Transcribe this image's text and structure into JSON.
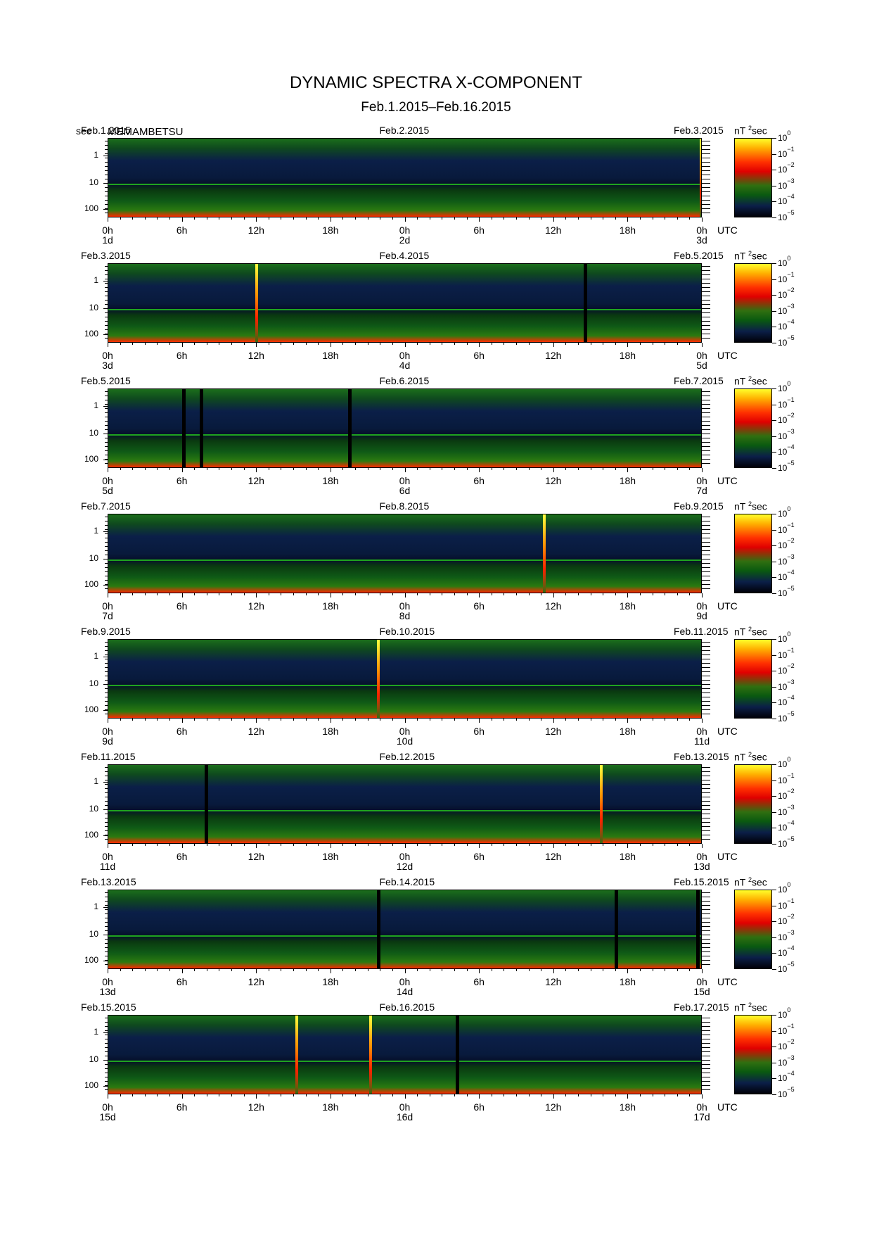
{
  "title": "DYNAMIC SPECTRA X-COMPONENT",
  "subtitle": "Feb.1.2015–Feb.16.2015",
  "station": "MEMAMBETSU",
  "y_unit": "sec",
  "colorbar_unit": "nT",
  "colorbar_unit_sup": "2",
  "colorbar_unit_tail": "sec",
  "colorbar_base": "10",
  "colorbar_exponents": [
    "0",
    "−1",
    "−2",
    "−3",
    "−4",
    "−5"
  ],
  "y_ticks": [
    "1",
    "10",
    "100"
  ],
  "x_ticks": [
    "0h",
    "6h",
    "12h",
    "18h",
    "0h",
    "6h",
    "12h",
    "18h",
    "0h"
  ],
  "utc_label": "UTC",
  "chart_data": [
    {
      "type": "heatmap",
      "start_date": "Feb.1.2015",
      "mid_date": "Feb.2.2015",
      "end_date": "Feb.3.2015",
      "day_labels": [
        "1d",
        "2d",
        "3d"
      ],
      "ylabel": "sec",
      "y_ticks": [
        "1",
        "10",
        "100"
      ],
      "x_ticks": [
        "0h",
        "6h",
        "12h",
        "18h",
        "0h",
        "6h",
        "12h",
        "18h",
        "0h"
      ],
      "colorbar": [
        "10^0",
        "10^-1",
        "10^-2",
        "10^-3",
        "10^-4",
        "10^-5"
      ],
      "bursts_h": [
        47.9
      ],
      "gaps_h": []
    },
    {
      "type": "heatmap",
      "start_date": "Feb.3.2015",
      "mid_date": "Feb.4.2015",
      "end_date": "Feb.5.2015",
      "day_labels": [
        "3d",
        "4d",
        "5d"
      ],
      "ylabel": "sec",
      "y_ticks": [
        "1",
        "10",
        "100"
      ],
      "x_ticks": [
        "0h",
        "6h",
        "12h",
        "18h",
        "0h",
        "6h",
        "12h",
        "18h",
        "0h"
      ],
      "colorbar": [
        "10^0",
        "10^-1",
        "10^-2",
        "10^-3",
        "10^-4",
        "10^-5"
      ],
      "bursts_h": [
        12.0
      ],
      "gaps_h": [
        38.5
      ]
    },
    {
      "type": "heatmap",
      "start_date": "Feb.5.2015",
      "mid_date": "Feb.6.2015",
      "end_date": "Feb.7.2015",
      "day_labels": [
        "5d",
        "6d",
        "7d"
      ],
      "ylabel": "sec",
      "y_ticks": [
        "1",
        "10",
        "100"
      ],
      "x_ticks": [
        "0h",
        "6h",
        "12h",
        "18h",
        "0h",
        "6h",
        "12h",
        "18h",
        "0h"
      ],
      "colorbar": [
        "10^0",
        "10^-1",
        "10^-2",
        "10^-3",
        "10^-4",
        "10^-5"
      ],
      "bursts_h": [],
      "gaps_h": [
        6.1,
        7.5,
        19.5
      ]
    },
    {
      "type": "heatmap",
      "start_date": "Feb.7.2015",
      "mid_date": "Feb.8.2015",
      "end_date": "Feb.9.2015",
      "day_labels": [
        "7d",
        "8d",
        "9d"
      ],
      "ylabel": "sec",
      "y_ticks": [
        "1",
        "10",
        "100"
      ],
      "x_ticks": [
        "0h",
        "6h",
        "12h",
        "18h",
        "0h",
        "6h",
        "12h",
        "18h",
        "0h"
      ],
      "colorbar": [
        "10^0",
        "10^-1",
        "10^-2",
        "10^-3",
        "10^-4",
        "10^-5"
      ],
      "bursts_h": [
        35.2
      ],
      "gaps_h": []
    },
    {
      "type": "heatmap",
      "start_date": "Feb.9.2015",
      "mid_date": "Feb.10.2015",
      "end_date": "Feb.11.2015",
      "day_labels": [
        "9d",
        "10d",
        "11d"
      ],
      "ylabel": "sec",
      "y_ticks": [
        "1",
        "10",
        "100"
      ],
      "x_ticks": [
        "0h",
        "6h",
        "12h",
        "18h",
        "0h",
        "6h",
        "12h",
        "18h",
        "0h"
      ],
      "colorbar": [
        "10^0",
        "10^-1",
        "10^-2",
        "10^-3",
        "10^-4",
        "10^-5"
      ],
      "bursts_h": [
        21.8
      ],
      "gaps_h": []
    },
    {
      "type": "heatmap",
      "start_date": "Feb.11.2015",
      "mid_date": "Feb.12.2015",
      "end_date": "Feb.13.2015",
      "day_labels": [
        "11d",
        "12d",
        "13d"
      ],
      "ylabel": "sec",
      "y_ticks": [
        "1",
        "10",
        "100"
      ],
      "x_ticks": [
        "0h",
        "6h",
        "12h",
        "18h",
        "0h",
        "6h",
        "12h",
        "18h",
        "0h"
      ],
      "colorbar": [
        "10^0",
        "10^-1",
        "10^-2",
        "10^-3",
        "10^-4",
        "10^-5"
      ],
      "bursts_h": [
        39.8
      ],
      "gaps_h": [
        7.9
      ]
    },
    {
      "type": "heatmap",
      "start_date": "Feb.13.2015",
      "mid_date": "Feb.14.2015",
      "end_date": "Feb.15.2015",
      "day_labels": [
        "13d",
        "14d",
        "15d"
      ],
      "ylabel": "sec",
      "y_ticks": [
        "1",
        "10",
        "100"
      ],
      "x_ticks": [
        "0h",
        "6h",
        "12h",
        "18h",
        "0h",
        "6h",
        "12h",
        "18h",
        "0h"
      ],
      "colorbar": [
        "10^0",
        "10^-1",
        "10^-2",
        "10^-3",
        "10^-4",
        "10^-5"
      ],
      "bursts_h": [],
      "gaps_h": [
        21.8,
        41.0,
        47.6
      ]
    },
    {
      "type": "heatmap",
      "start_date": "Feb.15.2015",
      "mid_date": "Feb.16.2015",
      "end_date": "Feb.17.2015",
      "day_labels": [
        "15d",
        "16d",
        "17d"
      ],
      "ylabel": "sec",
      "y_ticks": [
        "1",
        "10",
        "100"
      ],
      "x_ticks": [
        "0h",
        "6h",
        "12h",
        "18h",
        "0h",
        "6h",
        "12h",
        "18h",
        "0h"
      ],
      "colorbar": [
        "10^0",
        "10^-1",
        "10^-2",
        "10^-3",
        "10^-4",
        "10^-5"
      ],
      "bursts_h": [
        15.2,
        21.2
      ],
      "gaps_h": [
        28.2
      ]
    }
  ]
}
